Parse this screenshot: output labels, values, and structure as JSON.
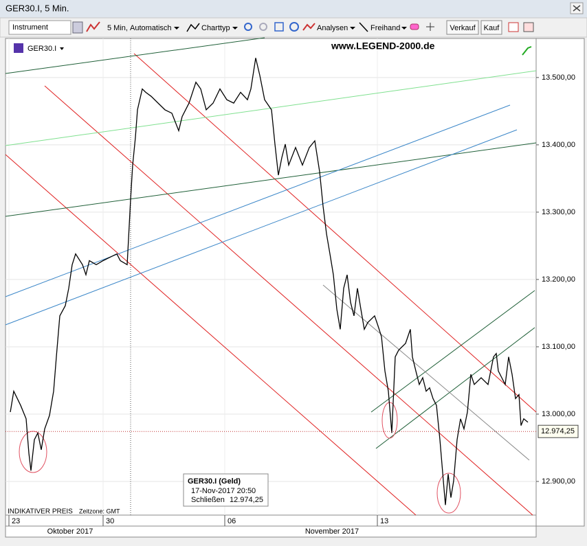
{
  "window": {
    "title": "GER30.I, 5 Min."
  },
  "toolbar": {
    "instrument": "Instrument",
    "interval": "5 Min,",
    "mode": "Automatisch",
    "chart_type": "Charttyp",
    "analyses": "Analysen",
    "freehand": "Freihand",
    "sell": "Verkauf",
    "buy": "Kauf"
  },
  "chart_data": {
    "type": "line",
    "symbol": "GER30.I",
    "watermark": "www.LEGEND-2000.de",
    "x": [
      5,
      10,
      20,
      28,
      32,
      35,
      40,
      45,
      50,
      55,
      62,
      68,
      72,
      77,
      85,
      90,
      95,
      100,
      110,
      115,
      120,
      130,
      140,
      150,
      160,
      165,
      175,
      180,
      183,
      187,
      190,
      197,
      202,
      210,
      220,
      230,
      240,
      250,
      255,
      265,
      275,
      282,
      290,
      300,
      310,
      320,
      330,
      340,
      350,
      355,
      362,
      368,
      375,
      385,
      390,
      395,
      400,
      405,
      410,
      420,
      430,
      440,
      448,
      455,
      460,
      465,
      470,
      475,
      480,
      485,
      490,
      495,
      500,
      505,
      510,
      515,
      520,
      525,
      535,
      540,
      545,
      550,
      555,
      560,
      565,
      570,
      580,
      587,
      590,
      595,
      600,
      605,
      610,
      615,
      620,
      625,
      630,
      635,
      638,
      642,
      646,
      650,
      655,
      660,
      665,
      670,
      675,
      680,
      690,
      700,
      708,
      712,
      715,
      720,
      725,
      730,
      735,
      740,
      745,
      748,
      752,
      758
    ],
    "series": [
      {
        "color": "#000000",
        "values": [
          13003,
          13034,
          13013,
          12993,
          12942,
          12916,
          12962,
          12972,
          12947,
          12978,
          12998,
          13034,
          13085,
          13146,
          13161,
          13187,
          13222,
          13238,
          13222,
          13207,
          13228,
          13222,
          13228,
          13233,
          13238,
          13228,
          13222,
          13319,
          13370,
          13411,
          13452,
          13483,
          13478,
          13472,
          13462,
          13452,
          13447,
          13421,
          13442,
          13462,
          13493,
          13483,
          13452,
          13462,
          13483,
          13467,
          13462,
          13478,
          13467,
          13483,
          13529,
          13503,
          13467,
          13452,
          13401,
          13355,
          13381,
          13401,
          13370,
          13396,
          13370,
          13396,
          13406,
          13360,
          13309,
          13268,
          13238,
          13207,
          13156,
          13126,
          13187,
          13207,
          13166,
          13146,
          13187,
          13156,
          13126,
          13136,
          13146,
          13131,
          13115,
          13064,
          13034,
          12972,
          13085,
          13095,
          13105,
          13126,
          13085,
          13064,
          13044,
          13054,
          13034,
          13039,
          13023,
          13013,
          12962,
          12901,
          12865,
          12911,
          12876,
          12901,
          12962,
          12993,
          12978,
          13003,
          13059,
          13044,
          13054,
          13044,
          13085,
          13090,
          13064,
          13054,
          13044,
          13085,
          13059,
          13023,
          13029,
          12983,
          12993,
          12988
        ]
      }
    ],
    "xlim": [
      0,
      770
    ],
    "xticks": [
      {
        "value": 3,
        "label": "23"
      },
      {
        "value": 140,
        "label": "30"
      },
      {
        "value": 317,
        "label": "06"
      },
      {
        "value": 539,
        "label": "13"
      }
    ],
    "ylim": [
      12850,
      13558
    ],
    "yticks": [
      {
        "value": 12900,
        "label": "12.900,00"
      },
      {
        "value": 13000,
        "label": "13.000,00"
      },
      {
        "value": 13100,
        "label": "13.100,00"
      },
      {
        "value": 13200,
        "label": "13.200,00"
      },
      {
        "value": 13300,
        "label": "13.300,00"
      },
      {
        "value": 13400,
        "label": "13.400,00"
      },
      {
        "value": 13500,
        "label": "13.500,00"
      }
    ],
    "grid": true,
    "last_price": {
      "value": 12974.25,
      "label": "12.974,25"
    },
    "months": [
      "Oktober 2017",
      "November 2017"
    ],
    "footer": "INDIKATIVER PREIS",
    "timezone": "Zeitzone: GMT",
    "tooltip": {
      "title": "GER30.I (Geld)",
      "datetime": "17-Nov-2017 20:50",
      "close_label": "Schließen",
      "close_value": "12.974,25"
    }
  }
}
